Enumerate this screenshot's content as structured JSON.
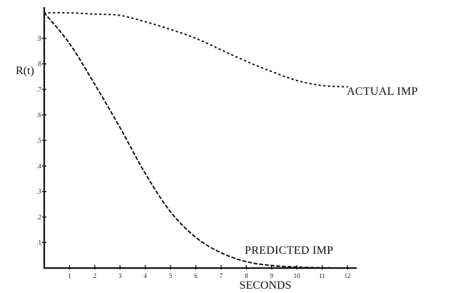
{
  "chart_data": {
    "type": "line",
    "title": "",
    "xlabel": "SECONDS",
    "ylabel": "R(t)",
    "xlim": [
      0,
      12
    ],
    "ylim": [
      0,
      1
    ],
    "grid": false,
    "legend": "inline labels",
    "x_ticks": [
      "1",
      "2",
      "3",
      "4",
      "5",
      "6",
      "7",
      "8",
      "9",
      "10",
      "11",
      "12"
    ],
    "y_ticks": [
      ".1",
      ".2",
      ".3",
      ".4",
      ".5",
      ".6",
      ".7",
      ".8",
      ".9"
    ],
    "series": [
      {
        "name": "ACTUAL IMP",
        "color": "#111111",
        "dash": "dotted",
        "x": [
          0,
          1,
          2,
          3,
          4,
          5,
          6,
          7,
          8,
          9,
          10,
          11,
          12
        ],
        "y": [
          1.0,
          1.0,
          0.995,
          0.99,
          0.965,
          0.935,
          0.9,
          0.855,
          0.81,
          0.77,
          0.735,
          0.715,
          0.71
        ]
      },
      {
        "name": "PREDICTED IMP",
        "color": "#111111",
        "dash": "dashed",
        "x": [
          0,
          1,
          2,
          3,
          4,
          5,
          6,
          7,
          8,
          9,
          10,
          11,
          12
        ],
        "y": [
          1.0,
          0.88,
          0.72,
          0.55,
          0.37,
          0.22,
          0.12,
          0.06,
          0.025,
          0.01,
          0.004,
          0.001,
          0.0
        ]
      }
    ]
  }
}
